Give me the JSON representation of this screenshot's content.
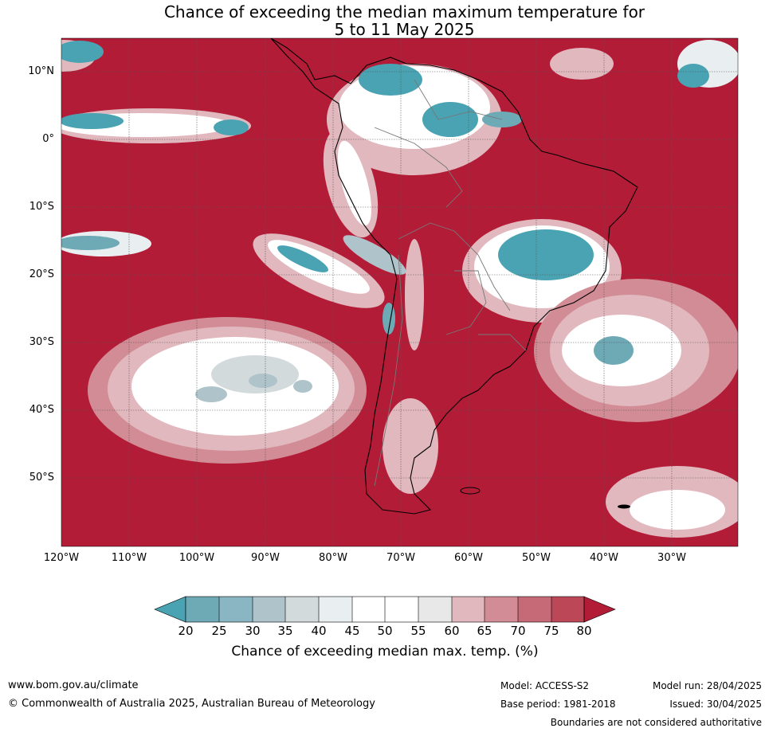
{
  "title": {
    "line1": "Chance of exceeding the median maximum temperature for",
    "line2": "5 to 11 May 2025"
  },
  "map": {
    "latitude_labels": [
      "10°N",
      "0°",
      "10°S",
      "20°S",
      "30°S",
      "40°S",
      "50°S"
    ],
    "longitude_labels": [
      "120°W",
      "110°W",
      "100°W",
      "90°W",
      "80°W",
      "70°W",
      "60°W",
      "50°W",
      "40°W",
      "30°W"
    ]
  },
  "legend": {
    "ticks": [
      "20",
      "25",
      "30",
      "35",
      "40",
      "45",
      "50",
      "55",
      "60",
      "65",
      "70",
      "75",
      "80"
    ],
    "colors": [
      "#4aa3b2",
      "#6ea9b6",
      "#8ab6c4",
      "#aec4ca",
      "#d3dadc",
      "#e9eff1",
      "#ffffff",
      "#ffffff",
      "#e9e8e9",
      "#e2b8bf",
      "#d28c96",
      "#c56a76",
      "#bc4757",
      "#b31c37"
    ],
    "label": "Chance of exceeding median max. temp. (%)"
  },
  "footer": {
    "website": "www.bom.gov.au/climate",
    "copyright": "© Commonwealth of Australia 2025, Australian Bureau of Meteorology",
    "model": "Model: ACCESS-S2",
    "model_run": "Model run: 28/04/2025",
    "base_period": "Base period: 1981-2018",
    "issued": "Issued: 30/04/2025",
    "disclaimer": "Boundaries are not considered authoritative"
  }
}
